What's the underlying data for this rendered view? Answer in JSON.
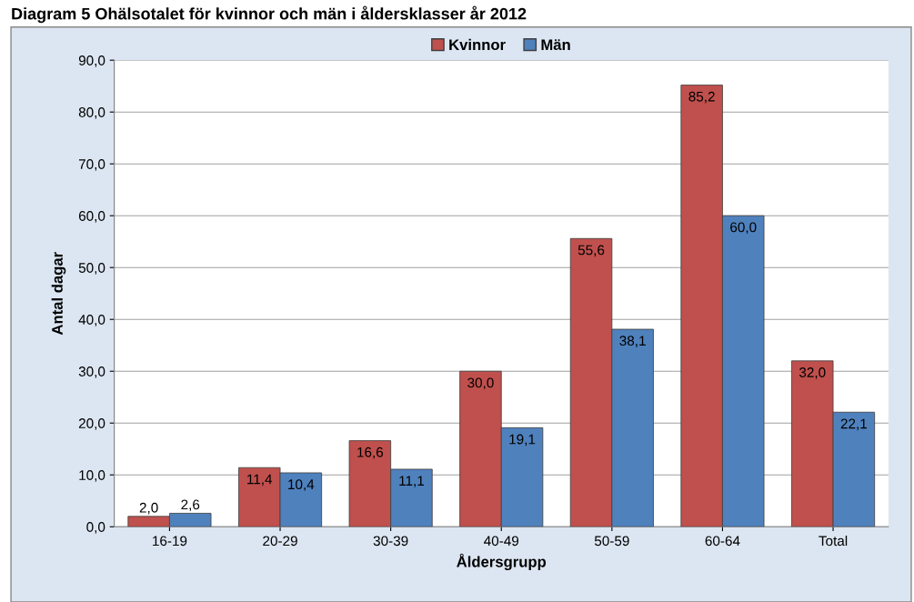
{
  "chart_data": {
    "type": "bar",
    "title": "Diagram 5 Ohälsotalet för kvinnor och män i åldersklasser år 2012",
    "xlabel": "Åldersgrupp",
    "ylabel": "Antal dagar",
    "categories": [
      "16-19",
      "20-29",
      "30-39",
      "40-49",
      "50-59",
      "60-64",
      "Total"
    ],
    "series": [
      {
        "name": "Kvinnor",
        "color": "#c0504d",
        "values": [
          2.0,
          11.4,
          16.6,
          30.0,
          55.6,
          85.2,
          32.0
        ],
        "value_labels": [
          "2,0",
          "11,4",
          "16,6",
          "30,0",
          "55,6",
          "85,2",
          "32,0"
        ]
      },
      {
        "name": "Män",
        "color": "#4f81bd",
        "values": [
          2.6,
          10.4,
          11.1,
          19.1,
          38.1,
          60.0,
          22.1
        ],
        "value_labels": [
          "2,6",
          "10,4",
          "11,1",
          "19,1",
          "38,1",
          "60,0",
          "22,1"
        ]
      }
    ],
    "ylim": [
      0,
      90
    ],
    "yticks": [
      {
        "value": 0,
        "label": "0,0"
      },
      {
        "value": 10,
        "label": "10,0"
      },
      {
        "value": 20,
        "label": "20,0"
      },
      {
        "value": 30,
        "label": "30,0"
      },
      {
        "value": 40,
        "label": "40,0"
      },
      {
        "value": 50,
        "label": "50,0"
      },
      {
        "value": 60,
        "label": "60,0"
      },
      {
        "value": 70,
        "label": "70,0"
      },
      {
        "value": 80,
        "label": "80,0"
      },
      {
        "value": 90,
        "label": "90,0"
      }
    ],
    "grid": "y",
    "legend": "top"
  }
}
